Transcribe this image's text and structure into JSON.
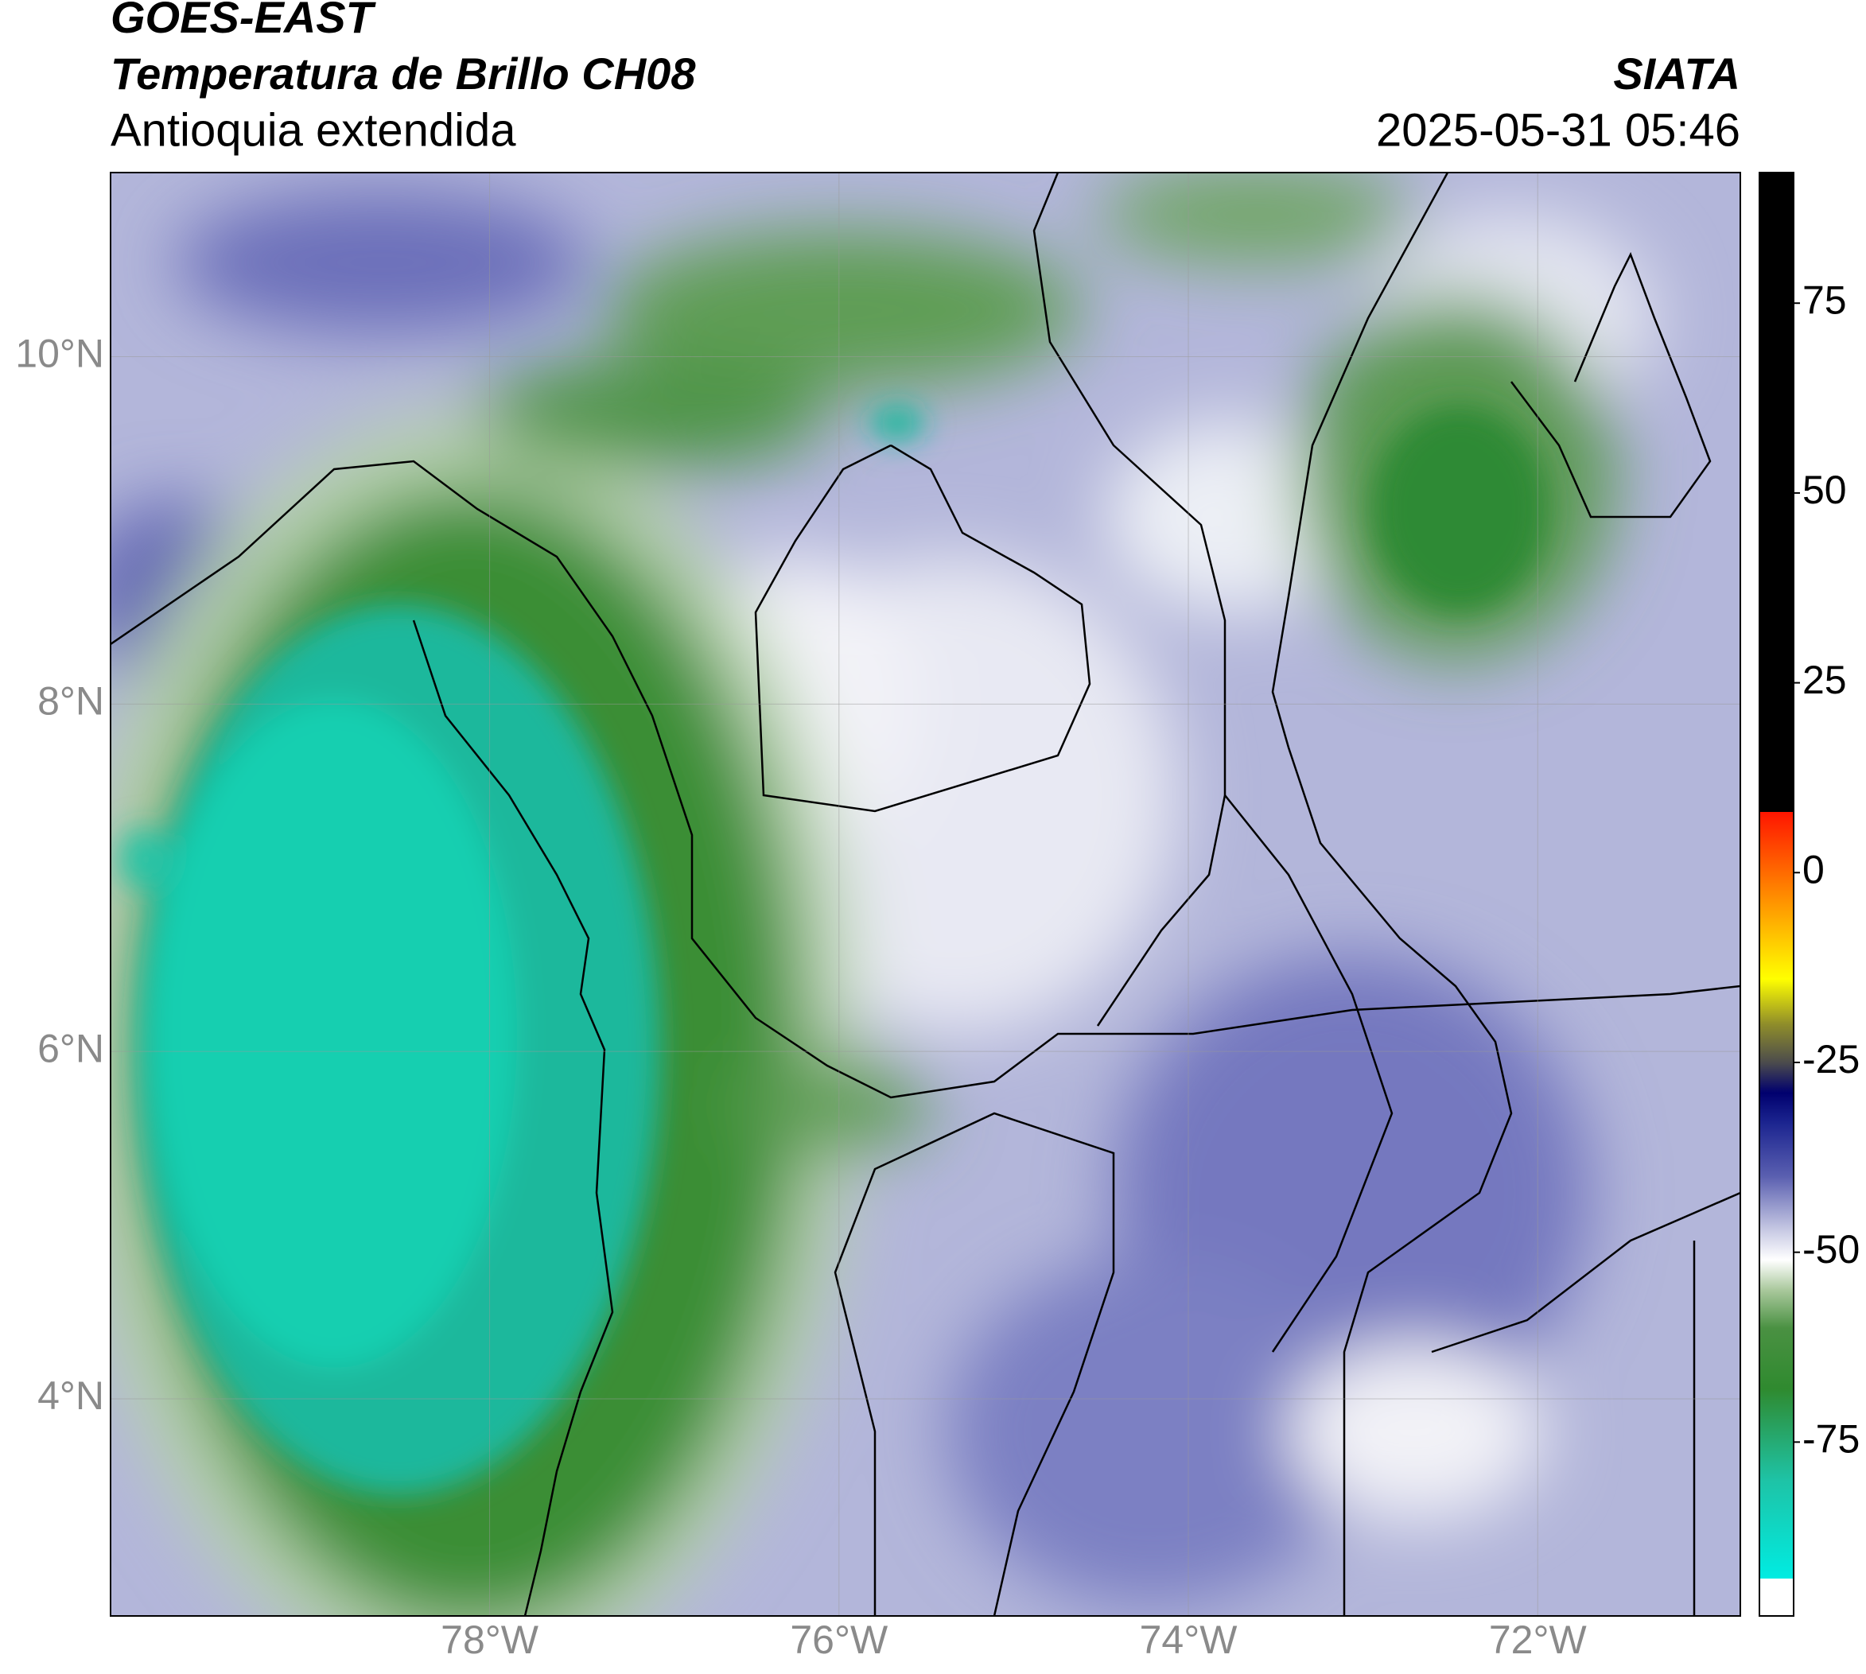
{
  "chart_data": {
    "type": "map",
    "title": "GOES-EAST",
    "subtitle": "Temperatura de Brillo CH08",
    "region": "Antioquia extendida",
    "source": "SIATA",
    "datetime": "2025-05-31 05:46",
    "xlim": [
      -80.17,
      -70.84
    ],
    "ylim": [
      2.75,
      11.06
    ],
    "xticks": [
      {
        "value": -78,
        "label": "78°W"
      },
      {
        "value": -76,
        "label": "76°W"
      },
      {
        "value": -74,
        "label": "74°W"
      },
      {
        "value": -72,
        "label": "72°W"
      }
    ],
    "yticks": [
      {
        "value": 10,
        "label": "10°N"
      },
      {
        "value": 8,
        "label": "8°N"
      },
      {
        "value": 6,
        "label": "6°N"
      },
      {
        "value": 4,
        "label": "4°N"
      }
    ],
    "grid": true,
    "clim": [
      -97.9,
      92.2
    ],
    "cticks": [
      75,
      50,
      25,
      0,
      -25,
      -50,
      -75
    ],
    "colormap": [
      [
        -97.9,
        "#ffffff"
      ],
      [
        -93,
        "#ffffff"
      ],
      [
        -93,
        "#00ece2"
      ],
      [
        -80,
        "#1ec3a6"
      ],
      [
        -68,
        "#2f8a2f"
      ],
      [
        -60,
        "#4a9142"
      ],
      [
        -55,
        "#a9c89c"
      ],
      [
        -51,
        "#ffffff"
      ],
      [
        -47,
        "#c6c8e3"
      ],
      [
        -40,
        "#5a5fb0"
      ],
      [
        -33,
        "#1c2590"
      ],
      [
        -29,
        "#00006e"
      ],
      [
        -25,
        "#4c4c4c"
      ],
      [
        -20,
        "#8f8d2a"
      ],
      [
        -14,
        "#ffff00"
      ],
      [
        -5,
        "#ffa000"
      ],
      [
        8,
        "#ff1500"
      ],
      [
        8,
        "#000000"
      ],
      [
        92.2,
        "#000000"
      ]
    ]
  }
}
